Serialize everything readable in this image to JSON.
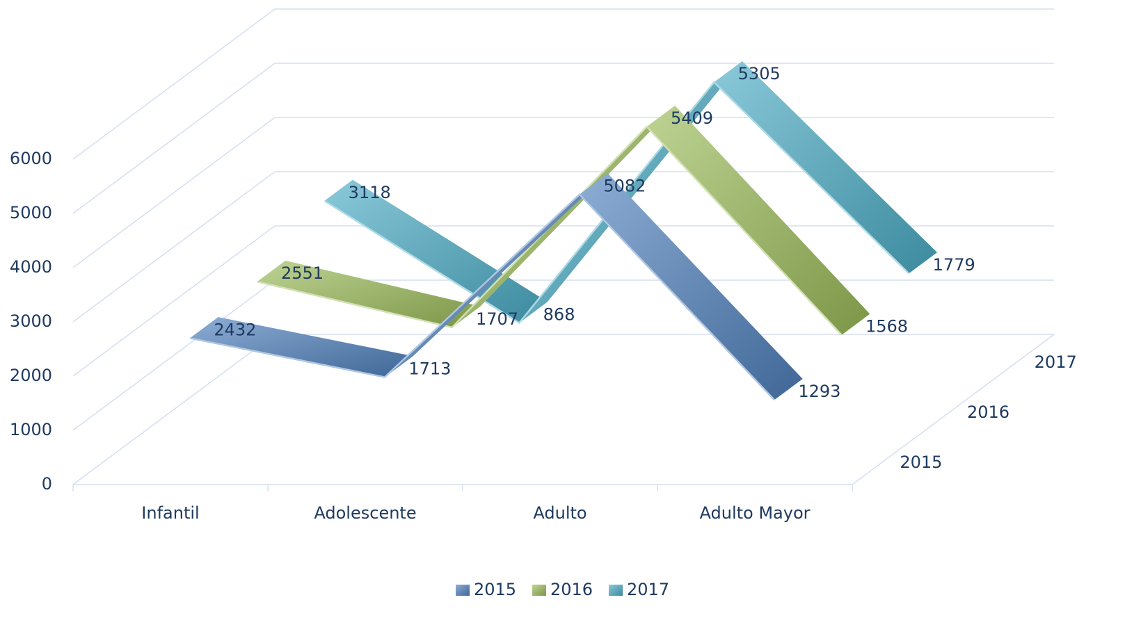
{
  "chart_data": {
    "type": "line3d",
    "categories": [
      "Infantil",
      "Adolescente",
      "Adulto",
      "Adulto Mayor"
    ],
    "series": [
      {
        "name": "2015",
        "color": "#4f81bd",
        "values": [
          2432,
          1713,
          5082,
          1293
        ]
      },
      {
        "name": "2016",
        "color": "#9bbb59",
        "values": [
          2551,
          1707,
          5409,
          1568
        ]
      },
      {
        "name": "2017",
        "color": "#4bacc6",
        "values": [
          3118,
          868,
          5305,
          1779
        ]
      }
    ],
    "ylim": [
      0,
      6000
    ],
    "yticks": [
      0,
      1000,
      2000,
      3000,
      4000,
      5000,
      6000
    ],
    "grid": true,
    "legend": "bottom"
  }
}
